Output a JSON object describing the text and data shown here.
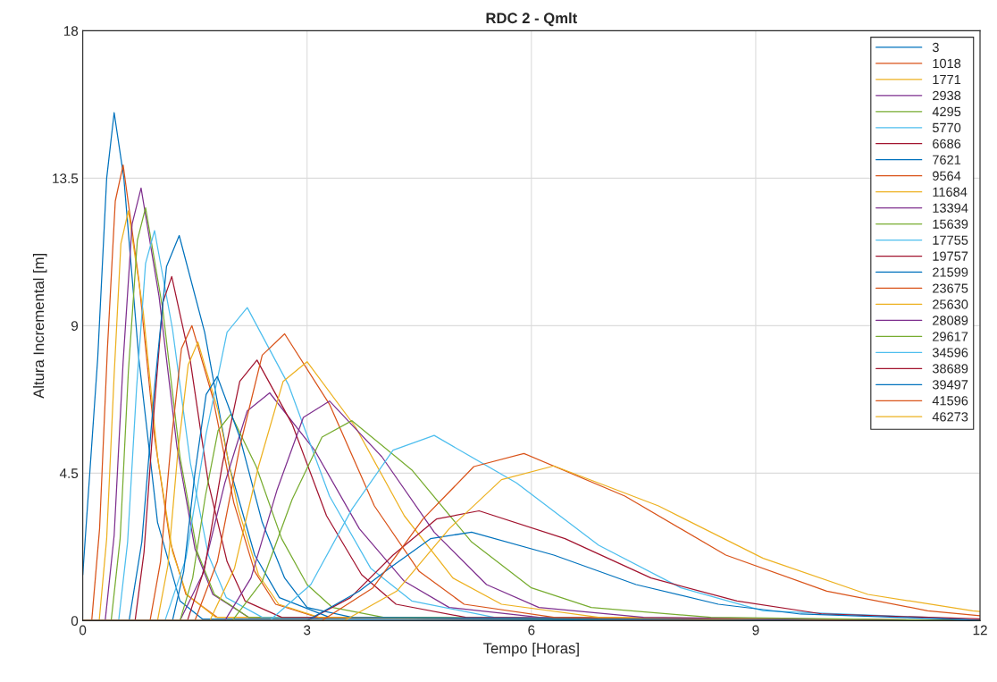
{
  "chart_data": {
    "type": "line",
    "title": "RDC 2 - Qmlt",
    "xlabel": "Tempo [Horas]",
    "ylabel": "Altura Incremental [m]",
    "xlim": [
      0,
      12
    ],
    "ylim": [
      0,
      18
    ],
    "xticks": [
      0,
      3,
      6,
      9,
      12
    ],
    "yticks": [
      0,
      4.5,
      9,
      13.5,
      18
    ],
    "grid": true,
    "legend": "top right",
    "marker": "none",
    "line_style": "solid",
    "series": [
      {
        "name": "3",
        "color": "#0072bd",
        "x": [
          0,
          0.2,
          0.32,
          0.42,
          0.55,
          0.75,
          1.0,
          1.3,
          1.6,
          12
        ],
        "values": [
          1.4,
          8,
          13.5,
          15.5,
          13.5,
          8,
          3,
          0.6,
          0.05,
          0
        ]
      },
      {
        "name": "1018",
        "color": "#d95319",
        "x": [
          0,
          0.12,
          0.225,
          0.33,
          0.435,
          0.54,
          0.75,
          0.96,
          1.17,
          1.38,
          1.8,
          12
        ],
        "values": [
          0,
          0,
          2.8,
          8.3,
          12.8,
          13.9,
          10.4,
          5.6,
          2.4,
          0.8,
          0.1,
          0
        ]
      },
      {
        "name": "1771",
        "color": "#edb120",
        "x": [
          0,
          0.22,
          0.32,
          0.42,
          0.51,
          0.61,
          0.81,
          1.0,
          1.2,
          1.39,
          1.78,
          12
        ],
        "values": [
          0,
          0,
          2.5,
          7.5,
          11.5,
          12.5,
          9.4,
          5,
          2.1,
          0.8,
          0.1,
          0
        ]
      },
      {
        "name": "2938",
        "color": "#7e2f8e",
        "x": [
          0,
          0.3,
          0.42,
          0.54,
          0.66,
          0.78,
          1.02,
          1.26,
          1.5,
          1.74,
          2.22,
          12
        ],
        "values": [
          0,
          0,
          2.6,
          7.9,
          12.1,
          13.2,
          9.9,
          5.3,
          2.2,
          0.8,
          0.1,
          0
        ]
      },
      {
        "name": "4295",
        "color": "#77ac30",
        "x": [
          0,
          0.38,
          0.5,
          0.61,
          0.73,
          0.84,
          1.07,
          1.3,
          1.53,
          1.76,
          2.22,
          12
        ],
        "values": [
          0,
          0,
          2.5,
          7.6,
          11.6,
          12.6,
          9.5,
          5,
          2.1,
          0.8,
          0.1,
          0
        ]
      },
      {
        "name": "5770",
        "color": "#4dbeee",
        "x": [
          0,
          0.48,
          0.6,
          0.72,
          0.84,
          0.96,
          1.2,
          1.44,
          1.68,
          1.92,
          2.4,
          12
        ],
        "values": [
          0,
          0,
          2.4,
          7.1,
          10.9,
          11.9,
          8.9,
          4.8,
          2,
          0.7,
          0.1,
          0
        ]
      },
      {
        "name": "6686",
        "color": "#a2142f",
        "x": [
          0,
          0.7,
          0.82,
          0.95,
          1.07,
          1.19,
          1.44,
          1.68,
          1.93,
          2.17,
          2.66,
          12
        ],
        "values": [
          0,
          0,
          2.1,
          6.3,
          9.7,
          10.5,
          7.9,
          4.2,
          1.8,
          0.6,
          0.1,
          0
        ]
      },
      {
        "name": "7621",
        "color": "#0072bd",
        "x": [
          0,
          0.62,
          0.79,
          0.96,
          1.12,
          1.29,
          1.63,
          1.96,
          2.3,
          2.63,
          3.3,
          12
        ],
        "values": [
          0,
          0,
          2.4,
          7.1,
          10.8,
          11.75,
          8.8,
          4.7,
          2,
          0.7,
          0.1,
          0
        ]
      },
      {
        "name": "9564",
        "color": "#d95319",
        "x": [
          0,
          0.9,
          1.04,
          1.18,
          1.32,
          1.46,
          1.74,
          2.02,
          2.3,
          2.58,
          3.14,
          12
        ],
        "values": [
          0,
          0,
          1.8,
          5.4,
          8.3,
          9,
          6.8,
          3.6,
          1.5,
          0.5,
          0.1,
          0
        ]
      },
      {
        "name": "11684",
        "color": "#edb120",
        "x": [
          0,
          1.0,
          1.14,
          1.27,
          1.41,
          1.54,
          1.81,
          2.08,
          2.35,
          2.62,
          3.16,
          12
        ],
        "values": [
          0,
          0,
          1.7,
          5.1,
          7.8,
          8.5,
          6.4,
          3.4,
          1.4,
          0.5,
          0.1,
          0
        ]
      },
      {
        "name": "13394",
        "color": "#7e2f8e",
        "x": [
          0,
          1.3,
          1.6,
          1.9,
          2.2,
          2.5,
          3.1,
          3.7,
          4.3,
          4.9,
          6.1,
          12
        ],
        "values": [
          0,
          0,
          1.4,
          4.2,
          6.4,
          6.95,
          5.2,
          2.8,
          1.2,
          0.4,
          0.1,
          0
        ]
      },
      {
        "name": "15639",
        "color": "#77ac30",
        "x": [
          0,
          1.3,
          1.47,
          1.64,
          1.81,
          1.98,
          2.32,
          2.66,
          3.0,
          3.34,
          4.02,
          12
        ],
        "values": [
          0,
          0,
          1.3,
          3.8,
          5.8,
          6.3,
          4.7,
          2.5,
          1.1,
          0.4,
          0.1,
          0
        ]
      },
      {
        "name": "17755",
        "color": "#4dbeee",
        "x": [
          0,
          1.1,
          1.38,
          1.65,
          1.93,
          2.2,
          2.75,
          3.3,
          3.85,
          4.4,
          5.5,
          12
        ],
        "values": [
          0,
          0,
          1.9,
          5.7,
          8.8,
          9.55,
          7.2,
          3.8,
          1.6,
          0.6,
          0.1,
          0
        ]
      },
      {
        "name": "19757",
        "color": "#a2142f",
        "x": [
          0,
          1.4,
          1.63,
          1.87,
          2.1,
          2.33,
          2.8,
          3.26,
          3.73,
          4.19,
          5.12,
          12
        ],
        "values": [
          0,
          0,
          1.6,
          4.8,
          7.3,
          7.95,
          6,
          3.2,
          1.4,
          0.5,
          0.1,
          0
        ]
      },
      {
        "name": "21599",
        "color": "#0072bd",
        "x": [
          0,
          1.2,
          1.35,
          1.5,
          1.65,
          1.8,
          2.1,
          2.4,
          2.7,
          3.0,
          3.6,
          12
        ],
        "values": [
          0,
          0,
          1.5,
          4.5,
          6.9,
          7.45,
          5.6,
          3,
          1.3,
          0.4,
          0.1,
          0
        ]
      },
      {
        "name": "23675",
        "color": "#d95319",
        "x": [
          0,
          1.5,
          1.8,
          2.1,
          2.4,
          2.7,
          3.3,
          3.9,
          4.5,
          5.1,
          6.3,
          12
        ],
        "values": [
          0,
          0,
          1.8,
          5.3,
          8.1,
          8.75,
          6.6,
          3.5,
          1.5,
          0.5,
          0.1,
          0
        ]
      },
      {
        "name": "25630",
        "color": "#edb120",
        "x": [
          0,
          1.7,
          2.03,
          2.35,
          2.68,
          3.0,
          3.65,
          4.3,
          4.95,
          5.6,
          6.9,
          12
        ],
        "values": [
          0,
          0,
          1.6,
          4.7,
          7.3,
          7.9,
          5.9,
          3.2,
          1.3,
          0.5,
          0.1,
          0
        ]
      },
      {
        "name": "28089",
        "color": "#7e2f8e",
        "x": [
          0,
          1.9,
          2.25,
          2.6,
          2.95,
          3.3,
          4.0,
          4.7,
          5.4,
          6.1,
          7.5,
          12
        ],
        "values": [
          0,
          0,
          1.3,
          4,
          6.2,
          6.7,
          5,
          2.7,
          1.1,
          0.4,
          0.1,
          0
        ]
      },
      {
        "name": "29617",
        "color": "#77ac30",
        "x": [
          0,
          2.0,
          2.4,
          2.8,
          3.2,
          3.6,
          4.4,
          5.2,
          6.0,
          6.8,
          8.4,
          12
        ],
        "values": [
          0,
          0,
          1.2,
          3.7,
          5.6,
          6.1,
          4.6,
          2.4,
          1,
          0.4,
          0.1,
          0
        ]
      },
      {
        "name": "34596",
        "color": "#4dbeee",
        "x": [
          0,
          2.5,
          3.05,
          3.6,
          4.15,
          4.7,
          5.8,
          6.9,
          8.0,
          9.1,
          11.3,
          12
        ],
        "values": [
          0,
          0,
          1.1,
          3.4,
          5.2,
          5.65,
          4.2,
          2.3,
          1,
          0.3,
          0.1,
          0
        ]
      },
      {
        "name": "38689",
        "color": "#a2142f",
        "x": [
          0,
          3.0,
          3.58,
          4.15,
          4.73,
          5.3,
          6.45,
          7.6,
          8.75,
          9.9,
          12
        ],
        "values": [
          0,
          0,
          0.7,
          2,
          3.1,
          3.35,
          2.5,
          1.3,
          0.6,
          0.2,
          0.05
        ]
      },
      {
        "name": "39497",
        "color": "#0072bd",
        "x": [
          0,
          3.0,
          3.7,
          4.1,
          4.65,
          5.2,
          6.3,
          7.4,
          8.5,
          9.6,
          11.8,
          12
        ],
        "values": [
          0,
          0,
          0.9,
          1.6,
          2.5,
          2.7,
          2,
          1.1,
          0.5,
          0.2,
          0.03,
          0
        ]
      },
      {
        "name": "41596",
        "color": "#d95319",
        "x": [
          0,
          3.2,
          3.88,
          4.55,
          5.23,
          5.9,
          7.25,
          8.6,
          9.95,
          11.3,
          12
        ],
        "values": [
          0,
          0,
          1,
          3.1,
          4.7,
          5.1,
          3.8,
          2,
          0.9,
          0.3,
          0.15
        ]
      },
      {
        "name": "46273",
        "color": "#edb120",
        "x": [
          0,
          3.5,
          4.2,
          4.9,
          5.6,
          6.3,
          7.7,
          9.1,
          10.5,
          11.9,
          12
        ],
        "values": [
          0,
          0,
          0.9,
          2.8,
          4.3,
          4.72,
          3.5,
          1.9,
          0.8,
          0.3,
          0.28
        ]
      }
    ]
  }
}
